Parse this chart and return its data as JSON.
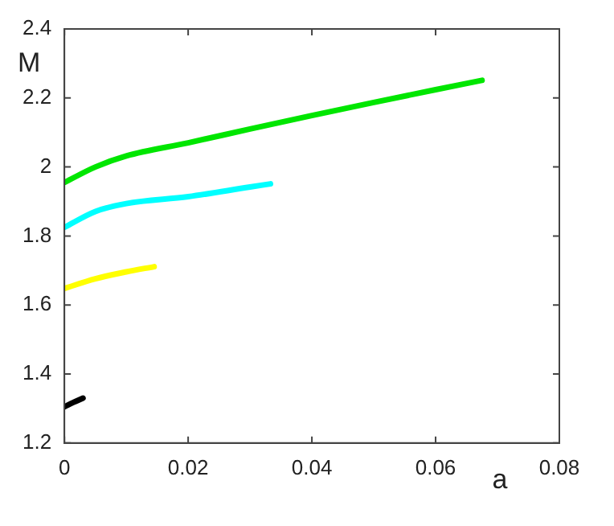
{
  "chart_data": {
    "type": "line",
    "xlabel": "a",
    "ylabel": "M",
    "xlim": [
      0,
      0.08
    ],
    "xticks": [
      0,
      0.02,
      0.04,
      0.06,
      0.08
    ],
    "ylim": [
      1.2,
      2.4
    ],
    "yticks": [
      1.2,
      1.4,
      1.6,
      1.8,
      2,
      2.2,
      2.4
    ],
    "grid": false,
    "legend": false,
    "marker": "none",
    "line_style": "solid",
    "series": [
      {
        "color": "#00e600",
        "x": [
          0,
          0.005,
          0.01,
          0.02,
          0.03,
          0.04,
          0.05,
          0.06,
          0.0675
        ],
        "values": [
          1.955,
          2.0,
          2.032,
          2.07,
          2.11,
          2.149,
          2.187,
          2.224,
          2.251
        ]
      },
      {
        "color": "#00ffff",
        "x": [
          0,
          0.005,
          0.01,
          0.02,
          0.03,
          0.0333
        ],
        "values": [
          1.825,
          1.871,
          1.894,
          1.914,
          1.942,
          1.951
        ]
      },
      {
        "color": "#ffff00",
        "x": [
          0,
          0.005,
          0.01,
          0.0145
        ],
        "values": [
          1.648,
          1.676,
          1.696,
          1.711
        ]
      },
      {
        "color": "#000000",
        "x": [
          0,
          0.0015,
          0.003
        ],
        "values": [
          1.305,
          1.318,
          1.33
        ]
      }
    ]
  }
}
